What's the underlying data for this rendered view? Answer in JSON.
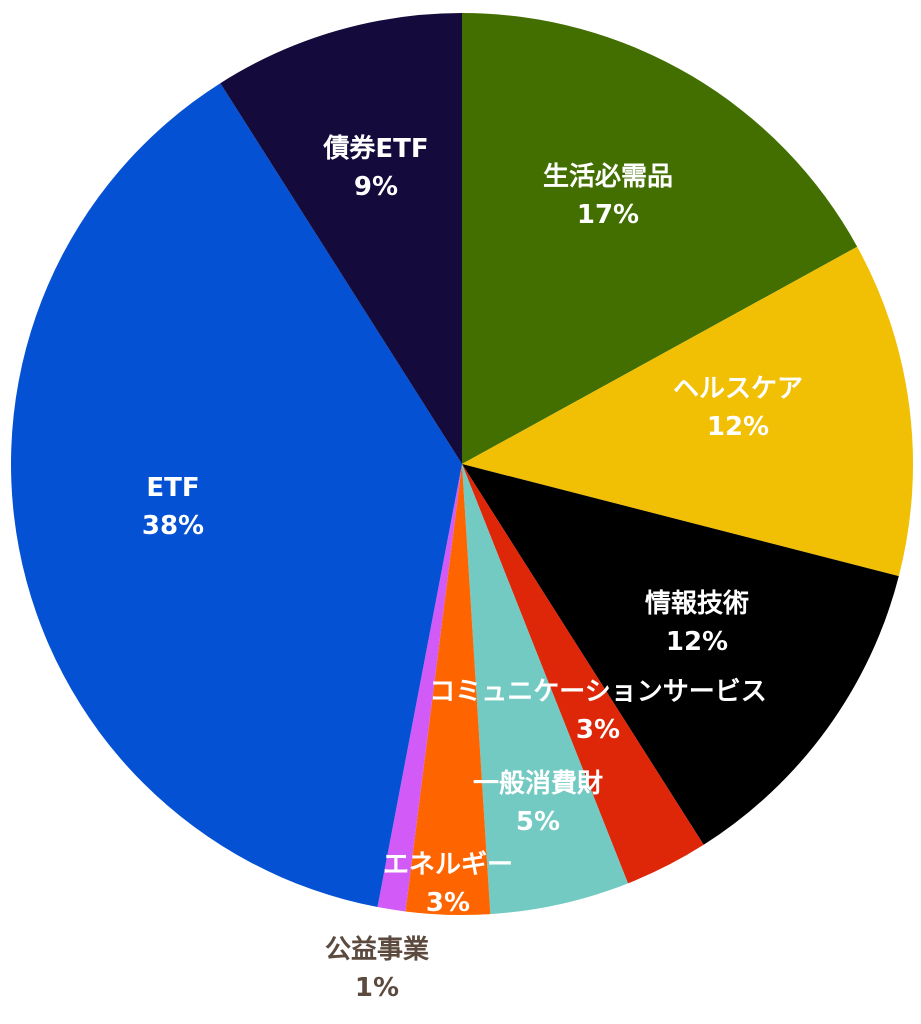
{
  "chart_data": {
    "type": "pie",
    "start_angle_deg": 0,
    "direction": "clockwise",
    "slices": [
      {
        "label": "生活必需品",
        "value": 17,
        "percent_label": "17%",
        "color": "#436f01",
        "text_color": "#ffffff"
      },
      {
        "label": "ヘルスケア",
        "value": 12,
        "percent_label": "12%",
        "color": "#f1bf04",
        "text_color": "#ffffff"
      },
      {
        "label": "情報技術",
        "value": 12,
        "percent_label": "12%",
        "color": "#000000",
        "text_color": "#ffffff"
      },
      {
        "label": "コミュニケーションサービス",
        "value": 3,
        "percent_label": "3%",
        "color": "#de2608",
        "text_color": "#ffffff"
      },
      {
        "label": "一般消費財",
        "value": 5,
        "percent_label": "5%",
        "color": "#72cac3",
        "text_color": "#ffffff"
      },
      {
        "label": "エネルギー",
        "value": 3,
        "percent_label": "3%",
        "color": "#fe6400",
        "text_color": "#ffffff"
      },
      {
        "label": "公益事業",
        "value": 1,
        "percent_label": "1%",
        "color": "#d25bf8",
        "text_color": "#5b4a3d"
      },
      {
        "label": "ETF",
        "value": 38,
        "percent_label": "38%",
        "color": "#0451d3",
        "text_color": "#ffffff"
      },
      {
        "label": "債券ETF",
        "value": 9,
        "percent_label": "9%",
        "color": "#140a3c",
        "text_color": "#ffffff"
      }
    ]
  }
}
